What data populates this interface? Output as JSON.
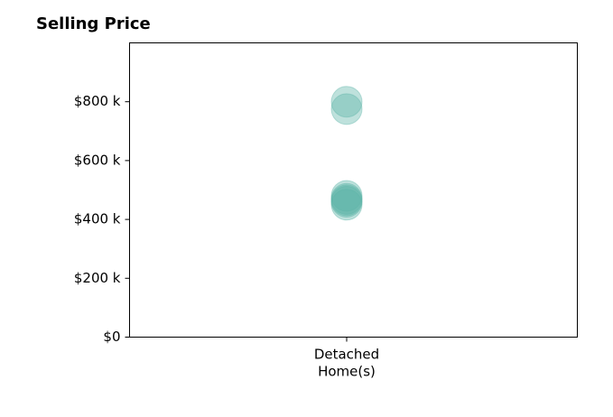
{
  "chart_data": {
    "type": "scatter",
    "title": "Selling Price",
    "xlabel": "",
    "ylabel": "",
    "categories": [
      "Detached\nHome(s)"
    ],
    "y_ticks": [
      0,
      200000,
      400000,
      600000,
      800000
    ],
    "y_tick_labels": [
      "$0",
      "$200 k",
      "$400 k",
      "$600 k",
      "$800 k"
    ],
    "ylim": [
      0,
      1000000
    ],
    "grid": false,
    "series": [
      {
        "category": "Detached\nHome(s)",
        "values": [
          800000,
          775000,
          480000,
          470000,
          465000,
          460000,
          450000
        ]
      }
    ],
    "marker_color": "#5db5a8",
    "marker_opacity": 0.4
  }
}
